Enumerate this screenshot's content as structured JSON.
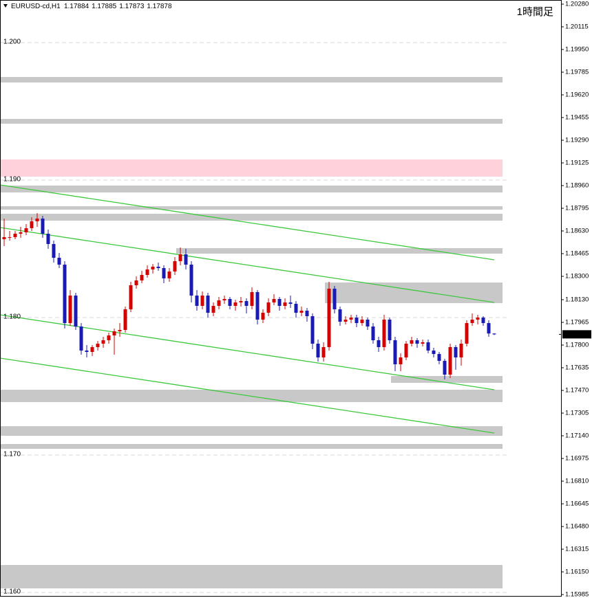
{
  "chart_data": {
    "type": "candlestick",
    "symbol": "EURUSD-cd,H1",
    "timeframe_label": "1時間足",
    "up_color": "#d40000",
    "down_color": "#1a1ab4",
    "ylim": [
      1.1597,
      1.2031
    ],
    "yticks": [
      {
        "value": 1.2,
        "label": "1.200"
      },
      {
        "value": 1.19,
        "label": "1.190"
      },
      {
        "value": 1.18,
        "label": "1.180"
      },
      {
        "value": 1.17,
        "label": "1.170"
      },
      {
        "value": 1.16,
        "label": "1.160"
      }
    ],
    "y2ticks": [
      {
        "value": 1.2028,
        "label": "1.20280"
      },
      {
        "value": 1.20115,
        "label": "1.20115"
      },
      {
        "value": 1.1995,
        "label": "1.19950"
      },
      {
        "value": 1.19785,
        "label": "1.19785"
      },
      {
        "value": 1.1962,
        "label": "1.19620"
      },
      {
        "value": 1.19455,
        "label": "1.19455"
      },
      {
        "value": 1.1929,
        "label": "1.19290"
      },
      {
        "value": 1.19125,
        "label": "1.19125"
      },
      {
        "value": 1.1896,
        "label": "1.18960"
      },
      {
        "value": 1.18795,
        "label": "1.18795"
      },
      {
        "value": 1.1863,
        "label": "1.18630"
      },
      {
        "value": 1.18465,
        "label": "1.18465"
      },
      {
        "value": 1.183,
        "label": "1.18300"
      },
      {
        "value": 1.1813,
        "label": "1.18130"
      },
      {
        "value": 1.17965,
        "label": "1.17965"
      },
      {
        "value": 1.178,
        "label": "1.17800"
      },
      {
        "value": 1.17635,
        "label": "1.17635"
      },
      {
        "value": 1.1747,
        "label": "1.17470"
      },
      {
        "value": 1.17305,
        "label": "1.17305"
      },
      {
        "value": 1.1714,
        "label": "1.17140"
      },
      {
        "value": 1.16975,
        "label": "1.16975"
      },
      {
        "value": 1.1681,
        "label": "1.16810"
      },
      {
        "value": 1.16645,
        "label": "1.16645"
      },
      {
        "value": 1.1648,
        "label": "1.16480"
      },
      {
        "value": 1.16315,
        "label": "1.16315"
      },
      {
        "value": 1.1615,
        "label": "1.16150"
      },
      {
        "value": 1.15985,
        "label": "1.15985"
      }
    ],
    "grid": true,
    "ohlc": [
      [
        1.1857,
        1.1872,
        1.1852,
        1.18585
      ],
      [
        1.18585,
        1.1863,
        1.1856,
        1.18585
      ],
      [
        1.18585,
        1.1863,
        1.1857,
        1.1861
      ],
      [
        1.1861,
        1.1866,
        1.1858,
        1.1862
      ],
      [
        1.1862,
        1.1868,
        1.186,
        1.1865
      ],
      [
        1.1865,
        1.1873,
        1.1863,
        1.187
      ],
      [
        1.187,
        1.1876,
        1.1866,
        1.1872
      ],
      [
        1.1872,
        1.1874,
        1.1858,
        1.1861
      ],
      [
        1.1861,
        1.1864,
        1.185,
        1.18535
      ],
      [
        1.18535,
        1.1856,
        1.184,
        1.18435
      ],
      [
        1.18435,
        1.1847,
        1.1836,
        1.18385
      ],
      [
        1.18385,
        1.1841,
        1.1792,
        1.1796
      ],
      [
        1.1796,
        1.182,
        1.1794,
        1.1816
      ],
      [
        1.1816,
        1.1818,
        1.1791,
        1.17935
      ],
      [
        1.17935,
        1.1796,
        1.1773,
        1.1776
      ],
      [
        1.1776,
        1.178,
        1.1771,
        1.1775
      ],
      [
        1.1775,
        1.178,
        1.1772,
        1.17785
      ],
      [
        1.17785,
        1.1783,
        1.1776,
        1.1781
      ],
      [
        1.1781,
        1.1786,
        1.1778,
        1.17835
      ],
      [
        1.17835,
        1.1789,
        1.1781,
        1.1787
      ],
      [
        1.1787,
        1.1792,
        1.1773,
        1.179
      ],
      [
        1.179,
        1.1796,
        1.1786,
        1.1791
      ],
      [
        1.1791,
        1.1808,
        1.1789,
        1.1806
      ],
      [
        1.1806,
        1.1826,
        1.1804,
        1.18235
      ],
      [
        1.18235,
        1.183,
        1.1821,
        1.1827
      ],
      [
        1.1827,
        1.1834,
        1.1825,
        1.1831
      ],
      [
        1.1831,
        1.1838,
        1.1829,
        1.1835
      ],
      [
        1.1835,
        1.1839,
        1.1832,
        1.1837
      ],
      [
        1.1837,
        1.184,
        1.1834,
        1.1836
      ],
      [
        1.1836,
        1.1838,
        1.1825,
        1.18285
      ],
      [
        1.18285,
        1.1836,
        1.1826,
        1.18335
      ],
      [
        1.18335,
        1.1844,
        1.1831,
        1.1841
      ],
      [
        1.1841,
        1.1851,
        1.1838,
        1.1846
      ],
      [
        1.1846,
        1.185,
        1.1835,
        1.18385
      ],
      [
        1.18385,
        1.1841,
        1.1811,
        1.1816
      ],
      [
        1.1816,
        1.182,
        1.1805,
        1.18085
      ],
      [
        1.18085,
        1.1819,
        1.1806,
        1.1816
      ],
      [
        1.1816,
        1.1818,
        1.18,
        1.18035
      ],
      [
        1.18035,
        1.1811,
        1.1801,
        1.18085
      ],
      [
        1.18085,
        1.1815,
        1.1806,
        1.18125
      ],
      [
        1.18125,
        1.1816,
        1.181,
        1.18135
      ],
      [
        1.18135,
        1.1815,
        1.1806,
        1.18085
      ],
      [
        1.18085,
        1.1813,
        1.1805,
        1.1811
      ],
      [
        1.1811,
        1.1815,
        1.1808,
        1.1812
      ],
      [
        1.1812,
        1.1814,
        1.1803,
        1.18085
      ],
      [
        1.18085,
        1.1822,
        1.1806,
        1.18185
      ],
      [
        1.18185,
        1.182,
        1.1795,
        1.17985
      ],
      [
        1.17985,
        1.1806,
        1.1796,
        1.18035
      ],
      [
        1.18035,
        1.1814,
        1.1801,
        1.1811
      ],
      [
        1.1811,
        1.1817,
        1.1809,
        1.18135
      ],
      [
        1.18135,
        1.1815,
        1.1805,
        1.18085
      ],
      [
        1.18085,
        1.1814,
        1.1806,
        1.1811
      ],
      [
        1.1811,
        1.1816,
        1.1807,
        1.181
      ],
      [
        1.181,
        1.1812,
        1.18,
        1.18035
      ],
      [
        1.18035,
        1.1808,
        1.1801,
        1.1805
      ],
      [
        1.1805,
        1.1807,
        1.1797,
        1.1801
      ],
      [
        1.1801,
        1.1803,
        1.1777,
        1.1781
      ],
      [
        1.1781,
        1.1784,
        1.1768,
        1.1771
      ],
      [
        1.1771,
        1.1782,
        1.1768,
        1.17785
      ],
      [
        1.17785,
        1.1826,
        1.1776,
        1.1821
      ],
      [
        1.1821,
        1.1823,
        1.1803,
        1.1806
      ],
      [
        1.1806,
        1.1808,
        1.1794,
        1.1797
      ],
      [
        1.1797,
        1.1801,
        1.1795,
        1.17985
      ],
      [
        1.17985,
        1.1802,
        1.1796,
        1.18
      ],
      [
        1.18,
        1.1802,
        1.1793,
        1.1796
      ],
      [
        1.1796,
        1.1801,
        1.1794,
        1.17985
      ],
      [
        1.17985,
        1.18,
        1.1791,
        1.17935
      ],
      [
        1.17935,
        1.1796,
        1.1781,
        1.17835
      ],
      [
        1.17835,
        1.1786,
        1.1775,
        1.17785
      ],
      [
        1.17785,
        1.1802,
        1.1776,
        1.17985
      ],
      [
        1.17985,
        1.18,
        1.1781,
        1.17835
      ],
      [
        1.17835,
        1.1786,
        1.1761,
        1.1766
      ],
      [
        1.1766,
        1.1774,
        1.1761,
        1.1771
      ],
      [
        1.1771,
        1.1783,
        1.1769,
        1.1781
      ],
      [
        1.1781,
        1.1786,
        1.1779,
        1.17835
      ],
      [
        1.17835,
        1.1785,
        1.1778,
        1.1781
      ],
      [
        1.1781,
        1.1784,
        1.1779,
        1.1782
      ],
      [
        1.1782,
        1.1784,
        1.1774,
        1.1776
      ],
      [
        1.1776,
        1.1778,
        1.1771,
        1.17735
      ],
      [
        1.17735,
        1.1775,
        1.1766,
        1.17685
      ],
      [
        1.17685,
        1.177,
        1.1755,
        1.17585
      ],
      [
        1.17585,
        1.1781,
        1.1756,
        1.17785
      ],
      [
        1.17785,
        1.178,
        1.1762,
        1.1771
      ],
      [
        1.1771,
        1.1784,
        1.1765,
        1.1781
      ],
      [
        1.1781,
        1.1798,
        1.1779,
        1.1796
      ],
      [
        1.1796,
        1.1803,
        1.1794,
        1.17985
      ],
      [
        1.17985,
        1.1802,
        1.1795,
        1.18
      ],
      [
        1.18,
        1.1801,
        1.1794,
        1.1796
      ],
      [
        1.1796,
        1.1798,
        1.1786,
        1.17884
      ],
      [
        1.17884,
        1.17885,
        1.17873,
        1.17878
      ]
    ],
    "zones": [
      {
        "low": 1.1971,
        "high": 1.1975,
        "start": 0,
        "color": "#c8c8c8"
      },
      {
        "low": 1.1941,
        "high": 1.19445,
        "start": 0,
        "color": "#c8c8c8"
      },
      {
        "low": 1.19025,
        "high": 1.1915,
        "start": 0,
        "color": "#ffd1da"
      },
      {
        "low": 1.1891,
        "high": 1.1896,
        "start": 0,
        "color": "#c8c8c8"
      },
      {
        "low": 1.18785,
        "high": 1.1881,
        "start": 0,
        "color": "#c8c8c8"
      },
      {
        "low": 1.18705,
        "high": 1.18755,
        "start": 0,
        "color": "#c8c8c8"
      },
      {
        "low": 1.18465,
        "high": 1.18505,
        "start": 32,
        "color": "#c8c8c8"
      },
      {
        "low": 1.18105,
        "high": 1.18255,
        "start": 59,
        "color": "#c8c8c8"
      },
      {
        "low": 1.17525,
        "high": 1.17575,
        "start": 71,
        "color": "#c8c8c8"
      },
      {
        "low": 1.17385,
        "high": 1.17475,
        "start": 0,
        "color": "#c8c8c8"
      },
      {
        "low": 1.1714,
        "high": 1.1721,
        "start": 0,
        "color": "#c8c8c8"
      },
      {
        "low": 1.17045,
        "high": 1.1708,
        "start": 0,
        "color": "#c8c8c8"
      },
      {
        "low": 1.1603,
        "high": 1.162,
        "start": 0,
        "color": "#c8c8c8"
      }
    ],
    "trend_lines": [
      {
        "x": [
          0,
          89
        ],
        "y": [
          1.18965,
          1.1842
        ]
      },
      {
        "x": [
          0,
          89
        ],
        "y": [
          1.18655,
          1.1811
        ]
      },
      {
        "x": [
          0,
          89
        ],
        "y": [
          1.1802,
          1.17475
        ]
      },
      {
        "x": [
          0,
          89
        ],
        "y": [
          1.17705,
          1.1716
        ]
      }
    ],
    "trend_color": "#3cc83c"
  }
}
